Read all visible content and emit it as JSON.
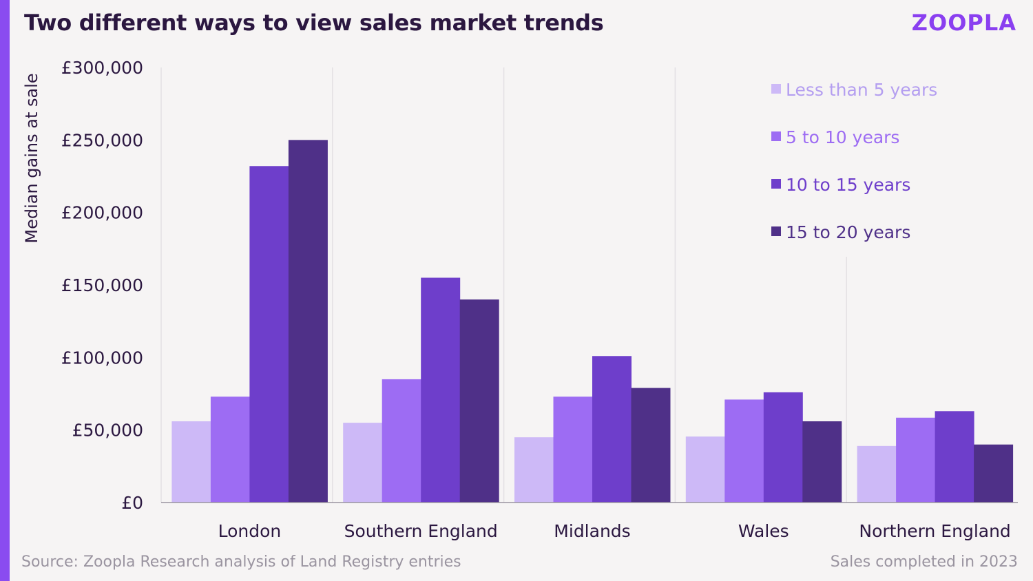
{
  "header": {
    "title": "Two different ways to view sales market trends",
    "logo": "ZOOPLA"
  },
  "footer": {
    "source": "Source: Zoopla Research analysis of Land Registry entries",
    "note": "Sales completed in 2023"
  },
  "chart_data": {
    "type": "bar",
    "title": "Two different ways to view sales market trends",
    "xlabel": "",
    "ylabel": "Median gains at sale",
    "ylim": [
      0,
      300000
    ],
    "y_ticks": [
      0,
      50000,
      100000,
      150000,
      200000,
      250000,
      300000
    ],
    "y_tick_labels": [
      "£0",
      "£50,000",
      "£100,000",
      "£150,000",
      "£200,000",
      "£250,000",
      "£300,000"
    ],
    "categories": [
      "London",
      "Southern England",
      "Midlands",
      "Wales",
      "Northern England"
    ],
    "series": [
      {
        "name": "Less than 5 years",
        "color": "#cdb9f7",
        "values": [
          56000,
          55000,
          45000,
          45500,
          39000
        ]
      },
      {
        "name": "5 to 10 years",
        "color": "#9d6cf3",
        "values": [
          73000,
          85000,
          73000,
          71000,
          58500
        ]
      },
      {
        "name": "10 to 15 years",
        "color": "#6e3ecb",
        "values": [
          232000,
          155000,
          101000,
          76000,
          63000
        ]
      },
      {
        "name": "15 to 20 years",
        "color": "#4f3088",
        "values": [
          250000,
          140000,
          79000,
          56000,
          40000
        ]
      }
    ],
    "legend_position": "top-right",
    "grid": false
  }
}
